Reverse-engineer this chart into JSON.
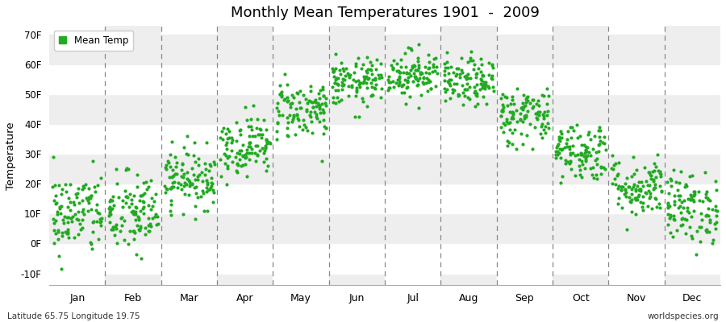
{
  "title": "Monthly Mean Temperatures 1901  -  2009",
  "ylabel": "Temperature",
  "xlabel_months": [
    "Jan",
    "Feb",
    "Mar",
    "Apr",
    "May",
    "Jun",
    "Jul",
    "Aug",
    "Sep",
    "Oct",
    "Nov",
    "Dec"
  ],
  "ytick_labels": [
    "-10F",
    "0F",
    "10F",
    "20F",
    "30F",
    "40F",
    "50F",
    "60F",
    "70F"
  ],
  "ytick_values": [
    -10,
    0,
    10,
    20,
    30,
    40,
    50,
    60,
    70
  ],
  "ylim": [
    -14,
    73
  ],
  "legend_label": "Mean Temp",
  "dot_color": "#22aa22",
  "dot_size": 9,
  "background_color": "#ffffff",
  "plot_bg_color": "#ffffff",
  "band_light": "#eeeeee",
  "band_dark": "#e0e0e0",
  "footer_left": "Latitude 65.75 Longitude 19.75",
  "footer_right": "worldspecies.org",
  "num_years": 109,
  "monthly_mean_F": [
    10,
    10,
    22,
    33,
    45,
    54,
    57,
    54,
    43,
    31,
    19,
    12
  ],
  "monthly_std_F": [
    7,
    7,
    5,
    5,
    5,
    4,
    4,
    4,
    5,
    5,
    5,
    6
  ]
}
